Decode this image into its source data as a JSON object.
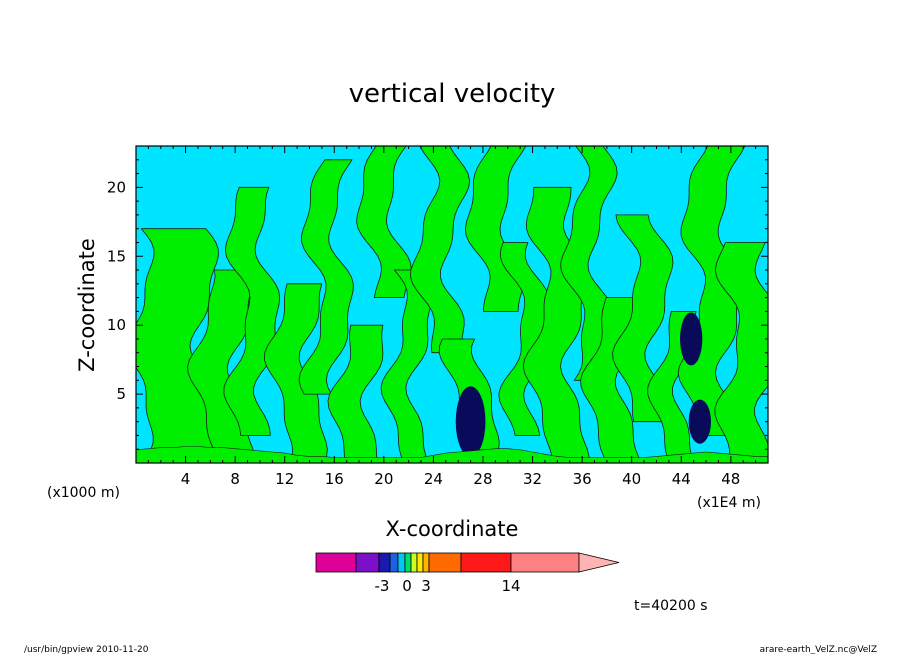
{
  "chart_data": {
    "type": "heatmap",
    "title": "vertical velocity",
    "xlabel": "X-coordinate",
    "ylabel": "Z-coordinate",
    "x_unit_left": "(x1000 m)",
    "x_unit_right": "(x1E4 m)",
    "xlim": [
      0,
      51
    ],
    "ylim": [
      0,
      23
    ],
    "x_ticks": [
      4,
      8,
      12,
      16,
      20,
      24,
      28,
      32,
      36,
      40,
      44,
      48
    ],
    "y_ticks": [
      5,
      10,
      15,
      20
    ],
    "fill_colors": {
      "negative": "#00e5ff",
      "positive": "#00ee00",
      "strong_negative": "#0a0a5a"
    },
    "colorbar": {
      "labels": [
        "-3",
        "0",
        "3",
        "14"
      ],
      "segments": [
        {
          "color": "#dd0099"
        },
        {
          "color": "#7a10c8"
        },
        {
          "color": "#1a1ab0"
        },
        {
          "color": "#1f5fe0"
        },
        {
          "color": "#00c8f0"
        },
        {
          "color": "#00e060"
        },
        {
          "color": "#c8ff20"
        },
        {
          "color": "#ffe800"
        },
        {
          "color": "#ffb400"
        },
        {
          "color": "#ff6a00"
        },
        {
          "color": "#ff1818"
        },
        {
          "color": "#ff8080"
        }
      ],
      "arrow_color": "#ffb4b4"
    },
    "time_label": "t=40200 s"
  },
  "footer": {
    "left": "/usr/bin/gpview   2010-11-20",
    "right": "arare-earth_VelZ.nc@VelZ"
  }
}
